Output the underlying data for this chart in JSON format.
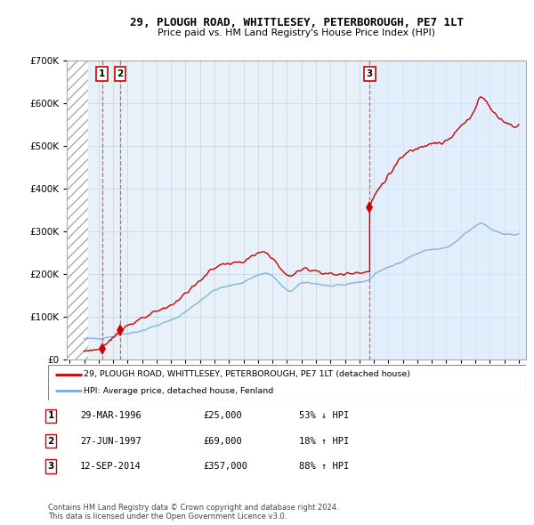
{
  "title": "29, PLOUGH ROAD, WHITTLESEY, PETERBOROUGH, PE7 1LT",
  "subtitle": "Price paid vs. HM Land Registry's House Price Index (HPI)",
  "transactions": [
    {
      "date_num": 1996.24,
      "price": 25000,
      "label": "1"
    },
    {
      "date_num": 1997.49,
      "price": 69000,
      "label": "2"
    },
    {
      "date_num": 2014.71,
      "price": 357000,
      "label": "3"
    }
  ],
  "table_rows": [
    {
      "num": "1",
      "date": "29-MAR-1996",
      "price": "£25,000",
      "hpi": "53% ↓ HPI"
    },
    {
      "num": "2",
      "date": "27-JUN-1997",
      "price": "£69,000",
      "hpi": "18% ↑ HPI"
    },
    {
      "num": "3",
      "date": "12-SEP-2014",
      "price": "£357,000",
      "hpi": "88% ↑ HPI"
    }
  ],
  "legend_line1": "29, PLOUGH ROAD, WHITTLESEY, PETERBOROUGH, PE7 1LT (detached house)",
  "legend_line2": "HPI: Average price, detached house, Fenland",
  "footer": "Contains HM Land Registry data © Crown copyright and database right 2024.\nThis data is licensed under the Open Government Licence v3.0.",
  "property_color": "#cc0000",
  "hpi_color": "#7aaddb",
  "highlight_color": "#ddeeff",
  "grid_color": "#c8d8e8",
  "background_chart": "#e8f0f8",
  "ylim": [
    0,
    700000
  ],
  "xlim_start": 1993.8,
  "xlim_end": 2025.5,
  "hatch_end": 1995.25,
  "highlight_start": 2014.71
}
